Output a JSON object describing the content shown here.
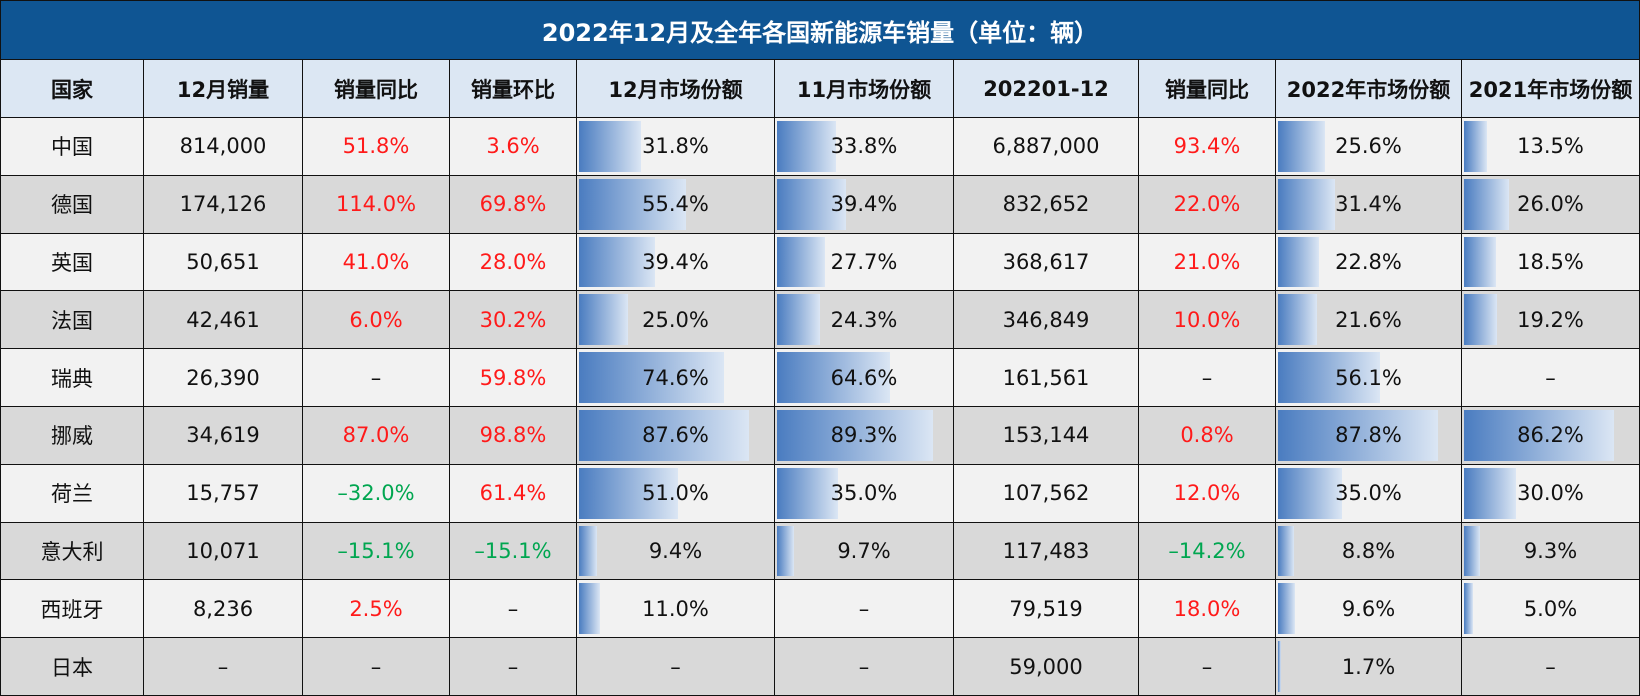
{
  "title": "2022年12月及全年各国新能源车销量（单位：辆）",
  "table": {
    "header": [
      "国家",
      "12月销量",
      "销量同比",
      "销量环比",
      "12月市场份额",
      "11月市场份额",
      "202201-12",
      "销量同比",
      "2022年市场份额",
      "2021年市场份额"
    ],
    "rows": [
      [
        "中国",
        "814,000",
        "51.8%",
        "3.6%",
        "31.8%",
        "33.8%",
        "6,887,000",
        "93.4%",
        "25.6%",
        "13.5%"
      ],
      [
        "德国",
        "174,126",
        "114.0%",
        "69.8%",
        "55.4%",
        "39.4%",
        "832,652",
        "22.0%",
        "31.4%",
        "26.0%"
      ],
      [
        "英国",
        "50,651",
        "41.0%",
        "28.0%",
        "39.4%",
        "27.7%",
        "368,617",
        "21.0%",
        "22.8%",
        "18.5%"
      ],
      [
        "法国",
        "42,461",
        "6.0%",
        "30.2%",
        "25.0%",
        "24.3%",
        "346,849",
        "10.0%",
        "21.6%",
        "19.2%"
      ],
      [
        "瑞典",
        "26,390",
        "–",
        "59.8%",
        "74.6%",
        "64.6%",
        "161,561",
        "–",
        "56.1%",
        "–"
      ],
      [
        "挪威",
        "34,619",
        "87.0%",
        "98.8%",
        "87.6%",
        "89.3%",
        "153,144",
        "0.8%",
        "87.8%",
        "86.2%"
      ],
      [
        "荷兰",
        "15,757",
        "–32.0%",
        "61.4%",
        "51.0%",
        "35.0%",
        "107,562",
        "12.0%",
        "35.0%",
        "30.0%"
      ],
      [
        "意大利",
        "10,071",
        "–15.1%",
        "–15.1%",
        "9.4%",
        "9.7%",
        "117,483",
        "–14.2%",
        "8.8%",
        "9.3%"
      ],
      [
        "西班牙",
        "8,236",
        "2.5%",
        "–",
        "11.0%",
        "–",
        "79,519",
        "18.0%",
        "9.6%",
        "5.0%"
      ],
      [
        "日本",
        "–",
        "–",
        "–",
        "–",
        "–",
        "59,000",
        "–",
        "1.7%",
        "–"
      ]
    ]
  }
}
